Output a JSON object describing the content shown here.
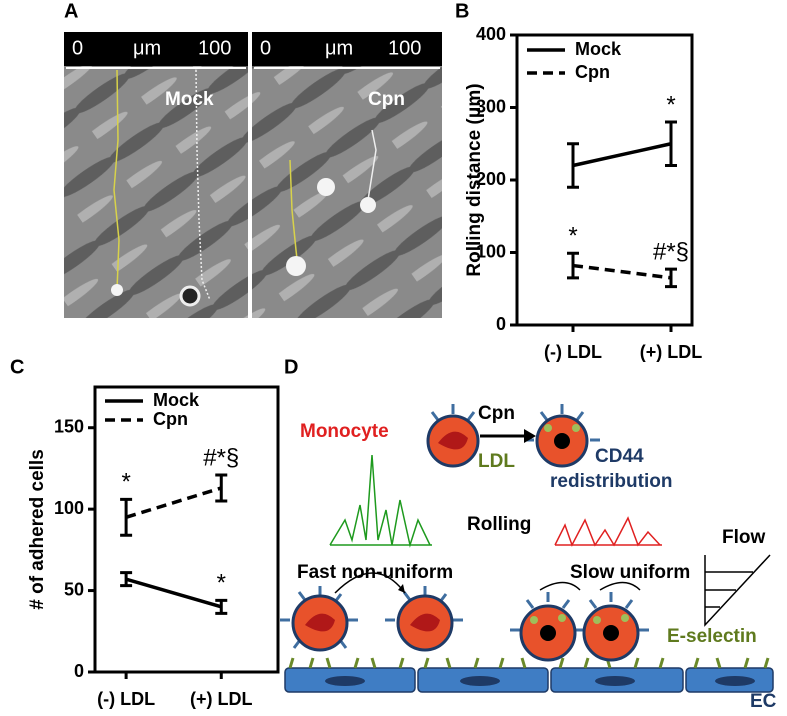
{
  "panel_labels": [
    "A",
    "B",
    "C",
    "D"
  ],
  "panel_a": {
    "images": [
      {
        "scale": [
          "0",
          "μm",
          "100"
        ],
        "label": "Mock"
      },
      {
        "scale": [
          "0",
          "μm",
          "100"
        ],
        "label": "Cpn"
      }
    ]
  },
  "chart_data": [
    {
      "type": "line",
      "y_label": "Rolling distance (μm)",
      "categories": [
        "(-) LDL",
        "(+) LDL"
      ],
      "ylim": [
        0,
        400
      ],
      "yticks": [
        0,
        100,
        200,
        300,
        400
      ],
      "series": [
        {
          "name": "Mock",
          "color": "#000000",
          "line_style": "solid",
          "values": [
            220,
            250
          ],
          "errors": [
            30,
            30
          ],
          "annotations": [
            null,
            "*"
          ]
        },
        {
          "name": "Cpn",
          "color": "#000000",
          "line_style": "dashed",
          "values": [
            82,
            65
          ],
          "errors": [
            17,
            12
          ],
          "annotations": [
            "*",
            "#*§"
          ]
        }
      ]
    },
    {
      "type": "line",
      "y_label": "# of adhered cells",
      "categories": [
        "(-) LDL",
        "(+) LDL"
      ],
      "ylim": [
        0,
        175
      ],
      "yticks": [
        0,
        50,
        100,
        150
      ],
      "series": [
        {
          "name": "Mock",
          "color": "#000000",
          "line_style": "solid",
          "values": [
            57,
            40
          ],
          "errors": [
            4,
            4
          ],
          "annotations": [
            null,
            "*"
          ]
        },
        {
          "name": "Cpn",
          "color": "#000000",
          "line_style": "dashed",
          "values": [
            95,
            113
          ],
          "errors": [
            11,
            8
          ],
          "annotations": [
            "*",
            "#*§"
          ]
        }
      ]
    }
  ],
  "panel_d": {
    "monocyte": "Monocyte",
    "stimulus": "Cpn",
    "ldl": "LDL",
    "cd44": "CD44",
    "redistribution": "redistribution",
    "rolling": "Rolling",
    "fast": "Fast non-uniform",
    "slow": "Slow uniform",
    "flow": "Flow",
    "selectin": "E-selectin",
    "ec": "EC"
  }
}
